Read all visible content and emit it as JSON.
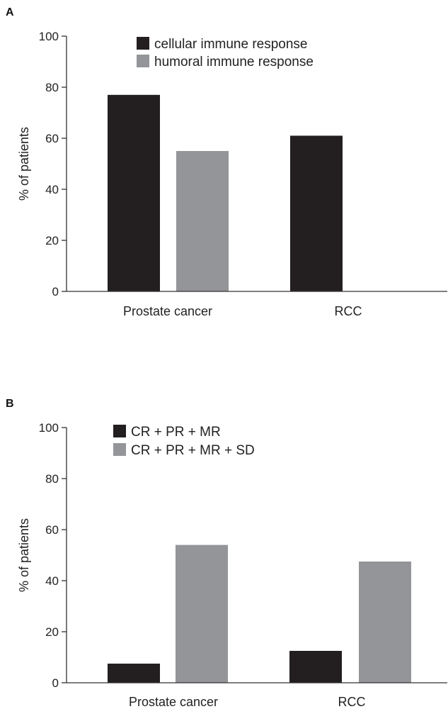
{
  "chart_data": [
    {
      "panel": "A",
      "type": "bar",
      "categories": [
        "Prostate cancer",
        "RCC"
      ],
      "series": [
        {
          "name": "cellular immune response",
          "color": "#231f20",
          "values": [
            77,
            61
          ]
        },
        {
          "name": "humoral immune response",
          "color": "#939598",
          "values": [
            55,
            null
          ]
        }
      ],
      "ylabel": "% of patients",
      "ylim": [
        0,
        100
      ],
      "yticks": [
        0,
        20,
        40,
        60,
        80,
        100
      ],
      "grid": false,
      "legend_position": "top"
    },
    {
      "panel": "B",
      "type": "bar",
      "categories": [
        "Prostate cancer",
        "RCC"
      ],
      "series": [
        {
          "name": "CR + PR + MR",
          "color": "#231f20",
          "values": [
            7.5,
            12.5
          ]
        },
        {
          "name": "CR + PR + MR + SD",
          "color": "#939598",
          "values": [
            54,
            47.5
          ]
        }
      ],
      "ylabel": "% of patients",
      "ylim": [
        0,
        100
      ],
      "yticks": [
        0,
        20,
        40,
        60,
        80,
        100
      ],
      "grid": false,
      "legend_position": "top"
    }
  ]
}
